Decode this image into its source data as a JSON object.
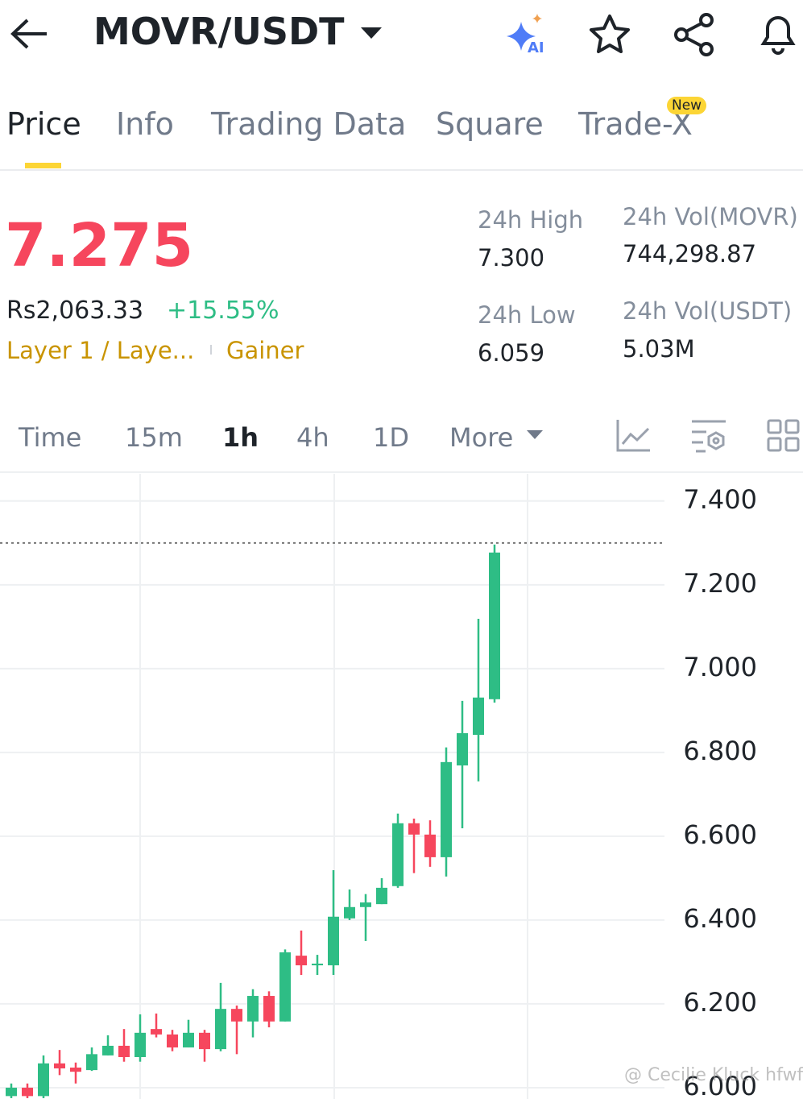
{
  "header": {
    "pair": "MOVR/USDT",
    "ai": "AI"
  },
  "tabs": [
    "Price",
    "Info",
    "Trading Data",
    "Square",
    "Trade-X"
  ],
  "badge": "New",
  "price": {
    "last": "7.275",
    "fiat": "Rs2,063.33",
    "change": "+15.55%",
    "tags": [
      "Layer 1 / Laye...",
      "Gainer"
    ]
  },
  "stats": [
    {
      "label": "24h High",
      "value": "7.300"
    },
    {
      "label": "24h Vol(MOVR)",
      "value": "744,298.87"
    },
    {
      "label": "24h Low",
      "value": "6.059"
    },
    {
      "label": "24h Vol(USDT)",
      "value": "5.03M"
    }
  ],
  "timeframes": [
    "Time",
    "15m",
    "1h",
    "4h",
    "1D",
    "More"
  ],
  "watermark": "@ Cecilie Kluck hfwf",
  "chart_data": {
    "type": "candlestick",
    "up_color": "#2ebd85",
    "down_color": "#f6465d",
    "open": [
      5.98,
      6.0,
      5.98,
      6.058,
      6.048,
      6.042,
      6.077,
      6.1,
      6.073,
      6.14,
      6.127,
      6.096,
      6.131,
      6.092,
      6.188,
      6.158,
      6.219,
      6.158,
      6.315,
      6.292,
      6.292,
      6.404,
      6.431,
      6.438,
      6.481,
      6.631,
      6.604,
      6.55,
      6.769,
      6.842,
      6.927
    ],
    "high": [
      6.01,
      6.01,
      6.077,
      6.09,
      6.06,
      6.096,
      6.125,
      6.14,
      6.175,
      6.177,
      6.138,
      6.162,
      6.138,
      6.25,
      6.196,
      6.235,
      6.23,
      6.33,
      6.375,
      6.317,
      6.519,
      6.473,
      6.462,
      6.5,
      6.654,
      6.642,
      6.638,
      6.812,
      6.923,
      7.119,
      7.296
    ],
    "low": [
      5.975,
      5.975,
      5.975,
      6.03,
      6.01,
      6.04,
      6.077,
      6.062,
      6.062,
      6.12,
      6.087,
      6.096,
      6.062,
      6.087,
      6.08,
      6.12,
      6.144,
      6.158,
      6.269,
      6.269,
      6.269,
      6.4,
      6.35,
      6.438,
      6.477,
      6.512,
      6.527,
      6.504,
      6.619,
      6.731,
      6.919
    ],
    "close": [
      6.0,
      5.98,
      6.058,
      6.046,
      6.038,
      6.08,
      6.1,
      6.073,
      6.131,
      6.127,
      6.096,
      6.131,
      6.092,
      6.188,
      6.158,
      6.219,
      6.158,
      6.323,
      6.292,
      6.296,
      6.408,
      6.431,
      6.442,
      6.477,
      6.631,
      6.604,
      6.55,
      6.777,
      6.846,
      6.931,
      7.277
    ],
    "price_line": 7.3,
    "ylim": [
      5.973,
      7.465
    ],
    "yticks": [
      {
        "value": 7.4,
        "label": "7.400"
      },
      {
        "value": 7.2,
        "label": "7.200"
      },
      {
        "value": 7.0,
        "label": "7.000"
      },
      {
        "value": 6.8,
        "label": "6.800"
      },
      {
        "value": 6.6,
        "label": "6.600"
      },
      {
        "value": 6.4,
        "label": "6.400"
      },
      {
        "value": 6.2,
        "label": "6.200"
      },
      {
        "value": 6.0,
        "label": "6.000"
      }
    ],
    "grid": true
  }
}
